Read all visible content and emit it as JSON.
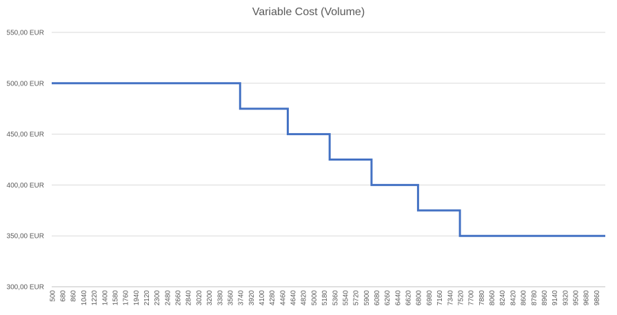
{
  "chart_data": {
    "type": "line",
    "title": "Variable Cost (Volume)",
    "xlabel": "",
    "ylabel": "",
    "ylim": [
      300,
      550
    ],
    "yticks": [
      "300,00 EUR",
      "350,00 EUR",
      "400,00 EUR",
      "450,00 EUR",
      "500,00 EUR",
      "550,00 EUR"
    ],
    "ytick_values": [
      300,
      350,
      400,
      450,
      500,
      550
    ],
    "x_start": 500,
    "x_end": 10000,
    "x_step": 20,
    "x_tick_labels": [
      500,
      680,
      860,
      1040,
      1220,
      1400,
      1580,
      1760,
      1940,
      2120,
      2300,
      2480,
      2660,
      2840,
      3020,
      3200,
      3380,
      3560,
      3740,
      3920,
      4100,
      4280,
      4460,
      4640,
      4820,
      5000,
      5180,
      5360,
      5540,
      5720,
      5900,
      6080,
      6260,
      6440,
      6620,
      6800,
      6980,
      7160,
      7340,
      7520,
      7700,
      7880,
      8060,
      8240,
      8420,
      8600,
      8780,
      8960,
      9140,
      9320,
      9500,
      9680,
      9860
    ],
    "series": [
      {
        "color": "#4472c4",
        "steps": [
          {
            "x_from": 500,
            "x_to": 3740,
            "y": 500
          },
          {
            "x_from": 3740,
            "x_to": 4560,
            "y": 475
          },
          {
            "x_from": 4560,
            "x_to": 5280,
            "y": 450
          },
          {
            "x_from": 5280,
            "x_to": 6000,
            "y": 425
          },
          {
            "x_from": 6000,
            "x_to": 6800,
            "y": 400
          },
          {
            "x_from": 6800,
            "x_to": 7520,
            "y": 375
          },
          {
            "x_from": 7520,
            "x_to": 10000,
            "y": 350
          }
        ]
      }
    ],
    "grid": true,
    "legend": "none"
  }
}
